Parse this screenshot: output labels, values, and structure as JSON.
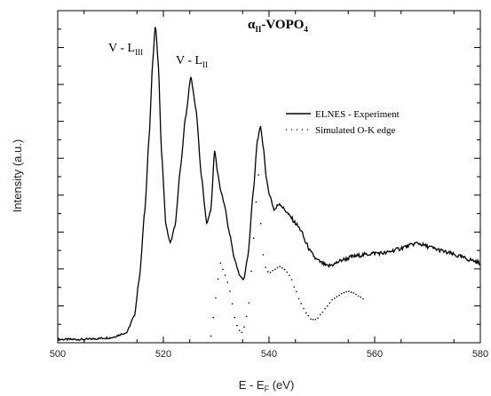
{
  "chart_data": {
    "type": "line",
    "title": "α_II-VOPO_4",
    "title_main": "α",
    "title_sub": "II",
    "title_mid": "-VOPO",
    "title_sub2": "4",
    "xlabel": "E - E_F (eV)",
    "xlabel_main": "E - E",
    "xlabel_sub": "F",
    "xlabel_tail": " (eV)",
    "ylabel": "Intensity (a.u.)",
    "xlim": [
      500,
      580
    ],
    "ylim": [
      0,
      1
    ],
    "grid": false,
    "legend_position": "top-right",
    "x_ticks": [
      500,
      520,
      540,
      560,
      580
    ],
    "x_tick_labels": [
      "500",
      "520",
      "540",
      "560",
      "580"
    ],
    "annotations": [
      {
        "text": "V - L",
        "sub": "III",
        "x": 518.5
      },
      {
        "text": "V - L",
        "sub": "II",
        "x": 525.2
      }
    ],
    "series": [
      {
        "name": "ELNES - Experiment",
        "style": "solid",
        "color": "#000000",
        "points": [
          [
            500,
            0.01
          ],
          [
            505,
            0.01
          ],
          [
            510,
            0.015
          ],
          [
            513,
            0.03
          ],
          [
            514.5,
            0.08
          ],
          [
            515.5,
            0.2
          ],
          [
            516.5,
            0.4
          ],
          [
            517.3,
            0.62
          ],
          [
            518,
            0.85
          ],
          [
            518.5,
            0.96
          ],
          [
            519,
            0.85
          ],
          [
            519.7,
            0.56
          ],
          [
            520.5,
            0.35
          ],
          [
            521.3,
            0.3
          ],
          [
            522.2,
            0.35
          ],
          [
            523.2,
            0.52
          ],
          [
            524.2,
            0.68
          ],
          [
            525.2,
            0.8
          ],
          [
            526.2,
            0.7
          ],
          [
            527.2,
            0.5
          ],
          [
            528.2,
            0.36
          ],
          [
            529,
            0.4
          ],
          [
            529.7,
            0.58
          ],
          [
            530.3,
            0.51
          ],
          [
            530.8,
            0.46
          ],
          [
            531.5,
            0.42
          ],
          [
            532.5,
            0.33
          ],
          [
            533.5,
            0.25
          ],
          [
            534.5,
            0.2
          ],
          [
            535.2,
            0.19
          ],
          [
            536,
            0.26
          ],
          [
            537,
            0.45
          ],
          [
            537.8,
            0.61
          ],
          [
            538.4,
            0.65
          ],
          [
            539,
            0.58
          ],
          [
            539.5,
            0.49
          ],
          [
            540.2,
            0.44
          ],
          [
            541,
            0.4
          ],
          [
            542,
            0.42
          ],
          [
            543,
            0.4
          ],
          [
            544,
            0.38
          ],
          [
            545,
            0.36
          ],
          [
            546,
            0.34
          ],
          [
            547,
            0.3
          ],
          [
            548,
            0.27
          ],
          [
            549,
            0.25
          ],
          [
            550,
            0.24
          ],
          [
            551,
            0.23
          ],
          [
            552,
            0.235
          ],
          [
            554,
            0.25
          ],
          [
            556,
            0.26
          ],
          [
            558,
            0.265
          ],
          [
            560,
            0.27
          ],
          [
            562,
            0.27
          ],
          [
            564,
            0.28
          ],
          [
            566,
            0.29
          ],
          [
            568,
            0.3
          ],
          [
            570,
            0.29
          ],
          [
            572,
            0.28
          ],
          [
            574,
            0.27
          ],
          [
            576,
            0.26
          ],
          [
            578,
            0.25
          ],
          [
            580,
            0.24
          ]
        ]
      },
      {
        "name": "Simulated O-K edge",
        "style": "dotted",
        "color": "#000000",
        "points": [
          [
            529,
            0.02
          ],
          [
            529.6,
            0.09
          ],
          [
            530.2,
            0.18
          ],
          [
            530.8,
            0.24
          ],
          [
            531.3,
            0.22
          ],
          [
            531.8,
            0.2
          ],
          [
            532.4,
            0.17
          ],
          [
            533,
            0.12
          ],
          [
            533.6,
            0.07
          ],
          [
            534.2,
            0.04
          ],
          [
            534.8,
            0.03
          ],
          [
            535.4,
            0.05
          ],
          [
            536.2,
            0.12
          ],
          [
            536.8,
            0.24
          ],
          [
            537.4,
            0.39
          ],
          [
            537.9,
            0.52
          ],
          [
            538.2,
            0.47
          ],
          [
            538.6,
            0.3
          ],
          [
            539.2,
            0.23
          ],
          [
            540,
            0.21
          ],
          [
            541,
            0.22
          ],
          [
            542,
            0.23
          ],
          [
            543,
            0.22
          ],
          [
            544,
            0.2
          ],
          [
            545,
            0.16
          ],
          [
            546,
            0.12
          ],
          [
            547,
            0.09
          ],
          [
            548,
            0.07
          ],
          [
            549,
            0.07
          ],
          [
            550,
            0.09
          ],
          [
            551,
            0.11
          ],
          [
            552,
            0.13
          ],
          [
            553,
            0.14
          ],
          [
            554,
            0.15
          ],
          [
            555,
            0.155
          ],
          [
            556,
            0.15
          ],
          [
            557,
            0.14
          ],
          [
            558,
            0.13
          ]
        ]
      }
    ]
  }
}
